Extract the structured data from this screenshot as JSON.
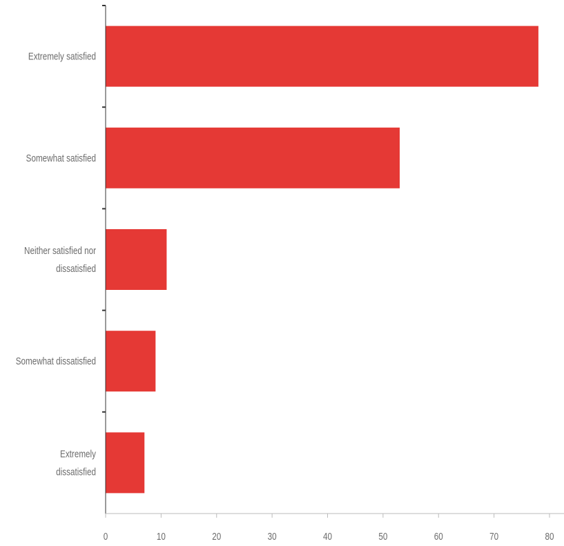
{
  "chart_data": {
    "type": "bar",
    "orientation": "horizontal",
    "categories": [
      "Extremely satisfied",
      "Somewhat satisfied",
      "Neither satisfied nor dissatisfied",
      "Somewhat dissatisfied",
      "Extremely dissatisfied"
    ],
    "category_label_lines": [
      [
        "Extremely satisfied"
      ],
      [
        "Somewhat satisfied"
      ],
      [
        "Neither satisfied nor",
        "dissatisfied"
      ],
      [
        "Somewhat dissatisfied"
      ],
      [
        "Extremely",
        "dissatisfied"
      ]
    ],
    "values": [
      78,
      53,
      11,
      9,
      7
    ],
    "xlim": [
      0,
      80
    ],
    "xticks": [
      0,
      10,
      20,
      30,
      40,
      50,
      60,
      70,
      80
    ],
    "title": "",
    "xlabel": "",
    "ylabel": "",
    "grid": false,
    "colors": {
      "bar": "#e53935",
      "axis": "#333333",
      "text": "#6b6b6b"
    }
  }
}
